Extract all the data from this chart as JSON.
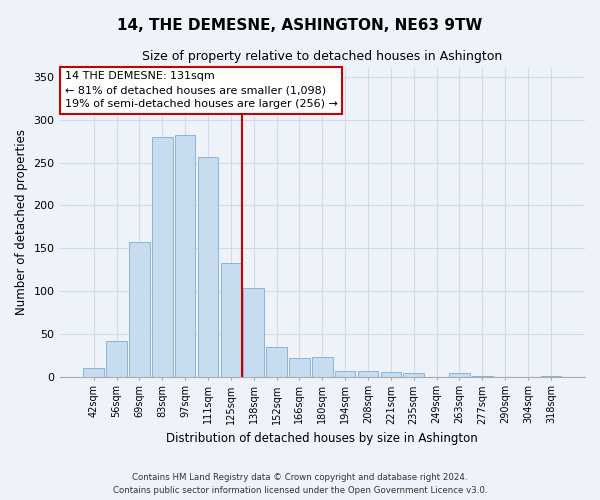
{
  "title": "14, THE DEMESNE, ASHINGTON, NE63 9TW",
  "subtitle": "Size of property relative to detached houses in Ashington",
  "xlabel": "Distribution of detached houses by size in Ashington",
  "ylabel": "Number of detached properties",
  "bar_labels": [
    "42sqm",
    "56sqm",
    "69sqm",
    "83sqm",
    "97sqm",
    "111sqm",
    "125sqm",
    "138sqm",
    "152sqm",
    "166sqm",
    "180sqm",
    "194sqm",
    "208sqm",
    "221sqm",
    "235sqm",
    "249sqm",
    "263sqm",
    "277sqm",
    "290sqm",
    "304sqm",
    "318sqm"
  ],
  "bar_values": [
    10,
    42,
    157,
    280,
    282,
    256,
    133,
    103,
    35,
    22,
    23,
    7,
    6,
    5,
    4,
    0,
    4,
    1,
    0,
    0,
    1
  ],
  "bar_color": "#c8dcf0",
  "bar_edge_color": "#8ab4d8",
  "reference_line_color": "#cc0000",
  "annotation_line1": "14 THE DEMESNE: 131sqm",
  "annotation_line2": "← 81% of detached houses are smaller (1,098)",
  "annotation_line3": "19% of semi-detached houses are larger (256) →",
  "annotation_box_edge_color": "#cc0000",
  "annotation_box_face_color": "white",
  "ylim": [
    0,
    360
  ],
  "yticks": [
    0,
    50,
    100,
    150,
    200,
    250,
    300,
    350
  ],
  "footnote1": "Contains HM Land Registry data © Crown copyright and database right 2024.",
  "footnote2": "Contains public sector information licensed under the Open Government Licence v3.0.",
  "background_color": "#eef2f9",
  "grid_color": "#d0daea"
}
